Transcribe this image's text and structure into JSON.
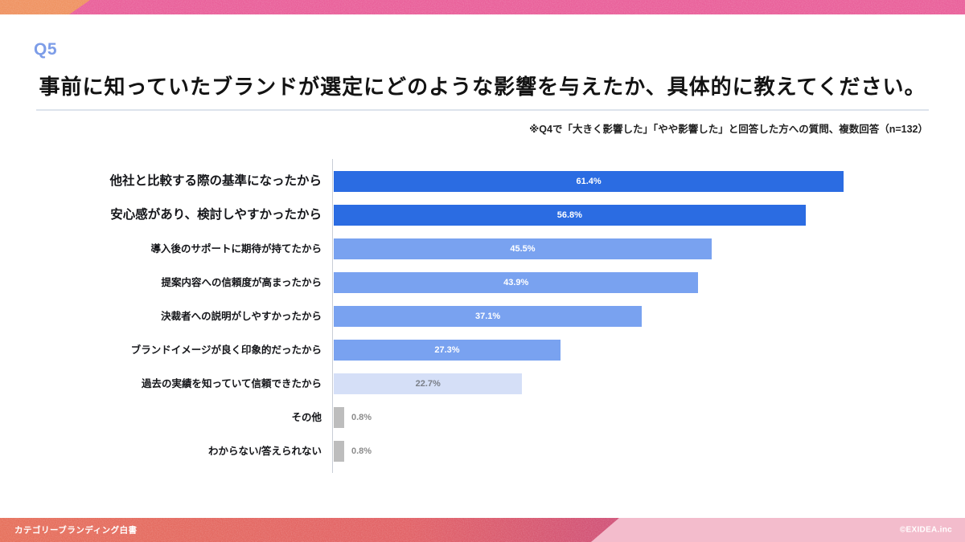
{
  "header": {
    "q_label": "Q5",
    "title": "事前に知っていたブランドが選定にどのような影響を与えたか、具体的に教えてください。",
    "note": "※Q4で「大きく影響した」「やや影響した」と回答した方への質問、複数回答（n=132）"
  },
  "chart_data": {
    "type": "bar",
    "orientation": "horizontal",
    "title": "事前に知っていたブランドが選定にどのような影響を与えたか、具体的に教えてください。",
    "subtitle": "※Q4で「大きく影響した」「やや影響した」と回答した方への質問、複数回答（n=132）",
    "sample_size": "n=132",
    "unit": "%",
    "categories": [
      "他社と比較する際の基準になったから",
      "安心感があり、検討しやすかったから",
      "導入後のサポートに期待が持てたから",
      "提案内容への信頼度が高まったから",
      "決裁者への説明がしやすかったから",
      "ブランドイメージが良く印象的だったから",
      "過去の実績を知っていて信頼できたから",
      "その他",
      "わからない/答えられない"
    ],
    "values": [
      61.4,
      56.8,
      45.5,
      43.9,
      37.1,
      27.3,
      22.7,
      0.8,
      0.8
    ],
    "value_labels": [
      "61.4%",
      "56.8%",
      "45.5%",
      "43.9%",
      "37.1%",
      "27.3%",
      "22.7%",
      "0.8%",
      "0.8%"
    ],
    "bar_styles": [
      "strong",
      "strong",
      "medium",
      "medium",
      "medium",
      "medium",
      "light",
      "gray",
      "gray"
    ],
    "emphasized_rows": [
      0,
      1
    ],
    "xlim": [
      0,
      70
    ],
    "grid": false,
    "legend": false,
    "value_label_position": "centered inside bar; outside-right when bar is tiny",
    "colors": {
      "strong": "#2b6ce2",
      "medium": "#79a2f0",
      "light": "#d5dff7",
      "gray": "#bdbdbd"
    }
  },
  "footer": {
    "left": "カテゴリーブランディング白書",
    "right": "©EXIDEA.inc"
  },
  "theme": {
    "q_label_color": "#7d9de8",
    "top_banner_pink": "#e9609a",
    "top_banner_orange": "#ef9362",
    "footer_gradient_left": "#e6715c",
    "footer_gradient_mid": "#e26367",
    "footer_gradient_right": "#d05278",
    "footer_light_pink": "#f3bccc",
    "axis_color": "#c9ced6",
    "divider_color": "#dde3ec"
  }
}
